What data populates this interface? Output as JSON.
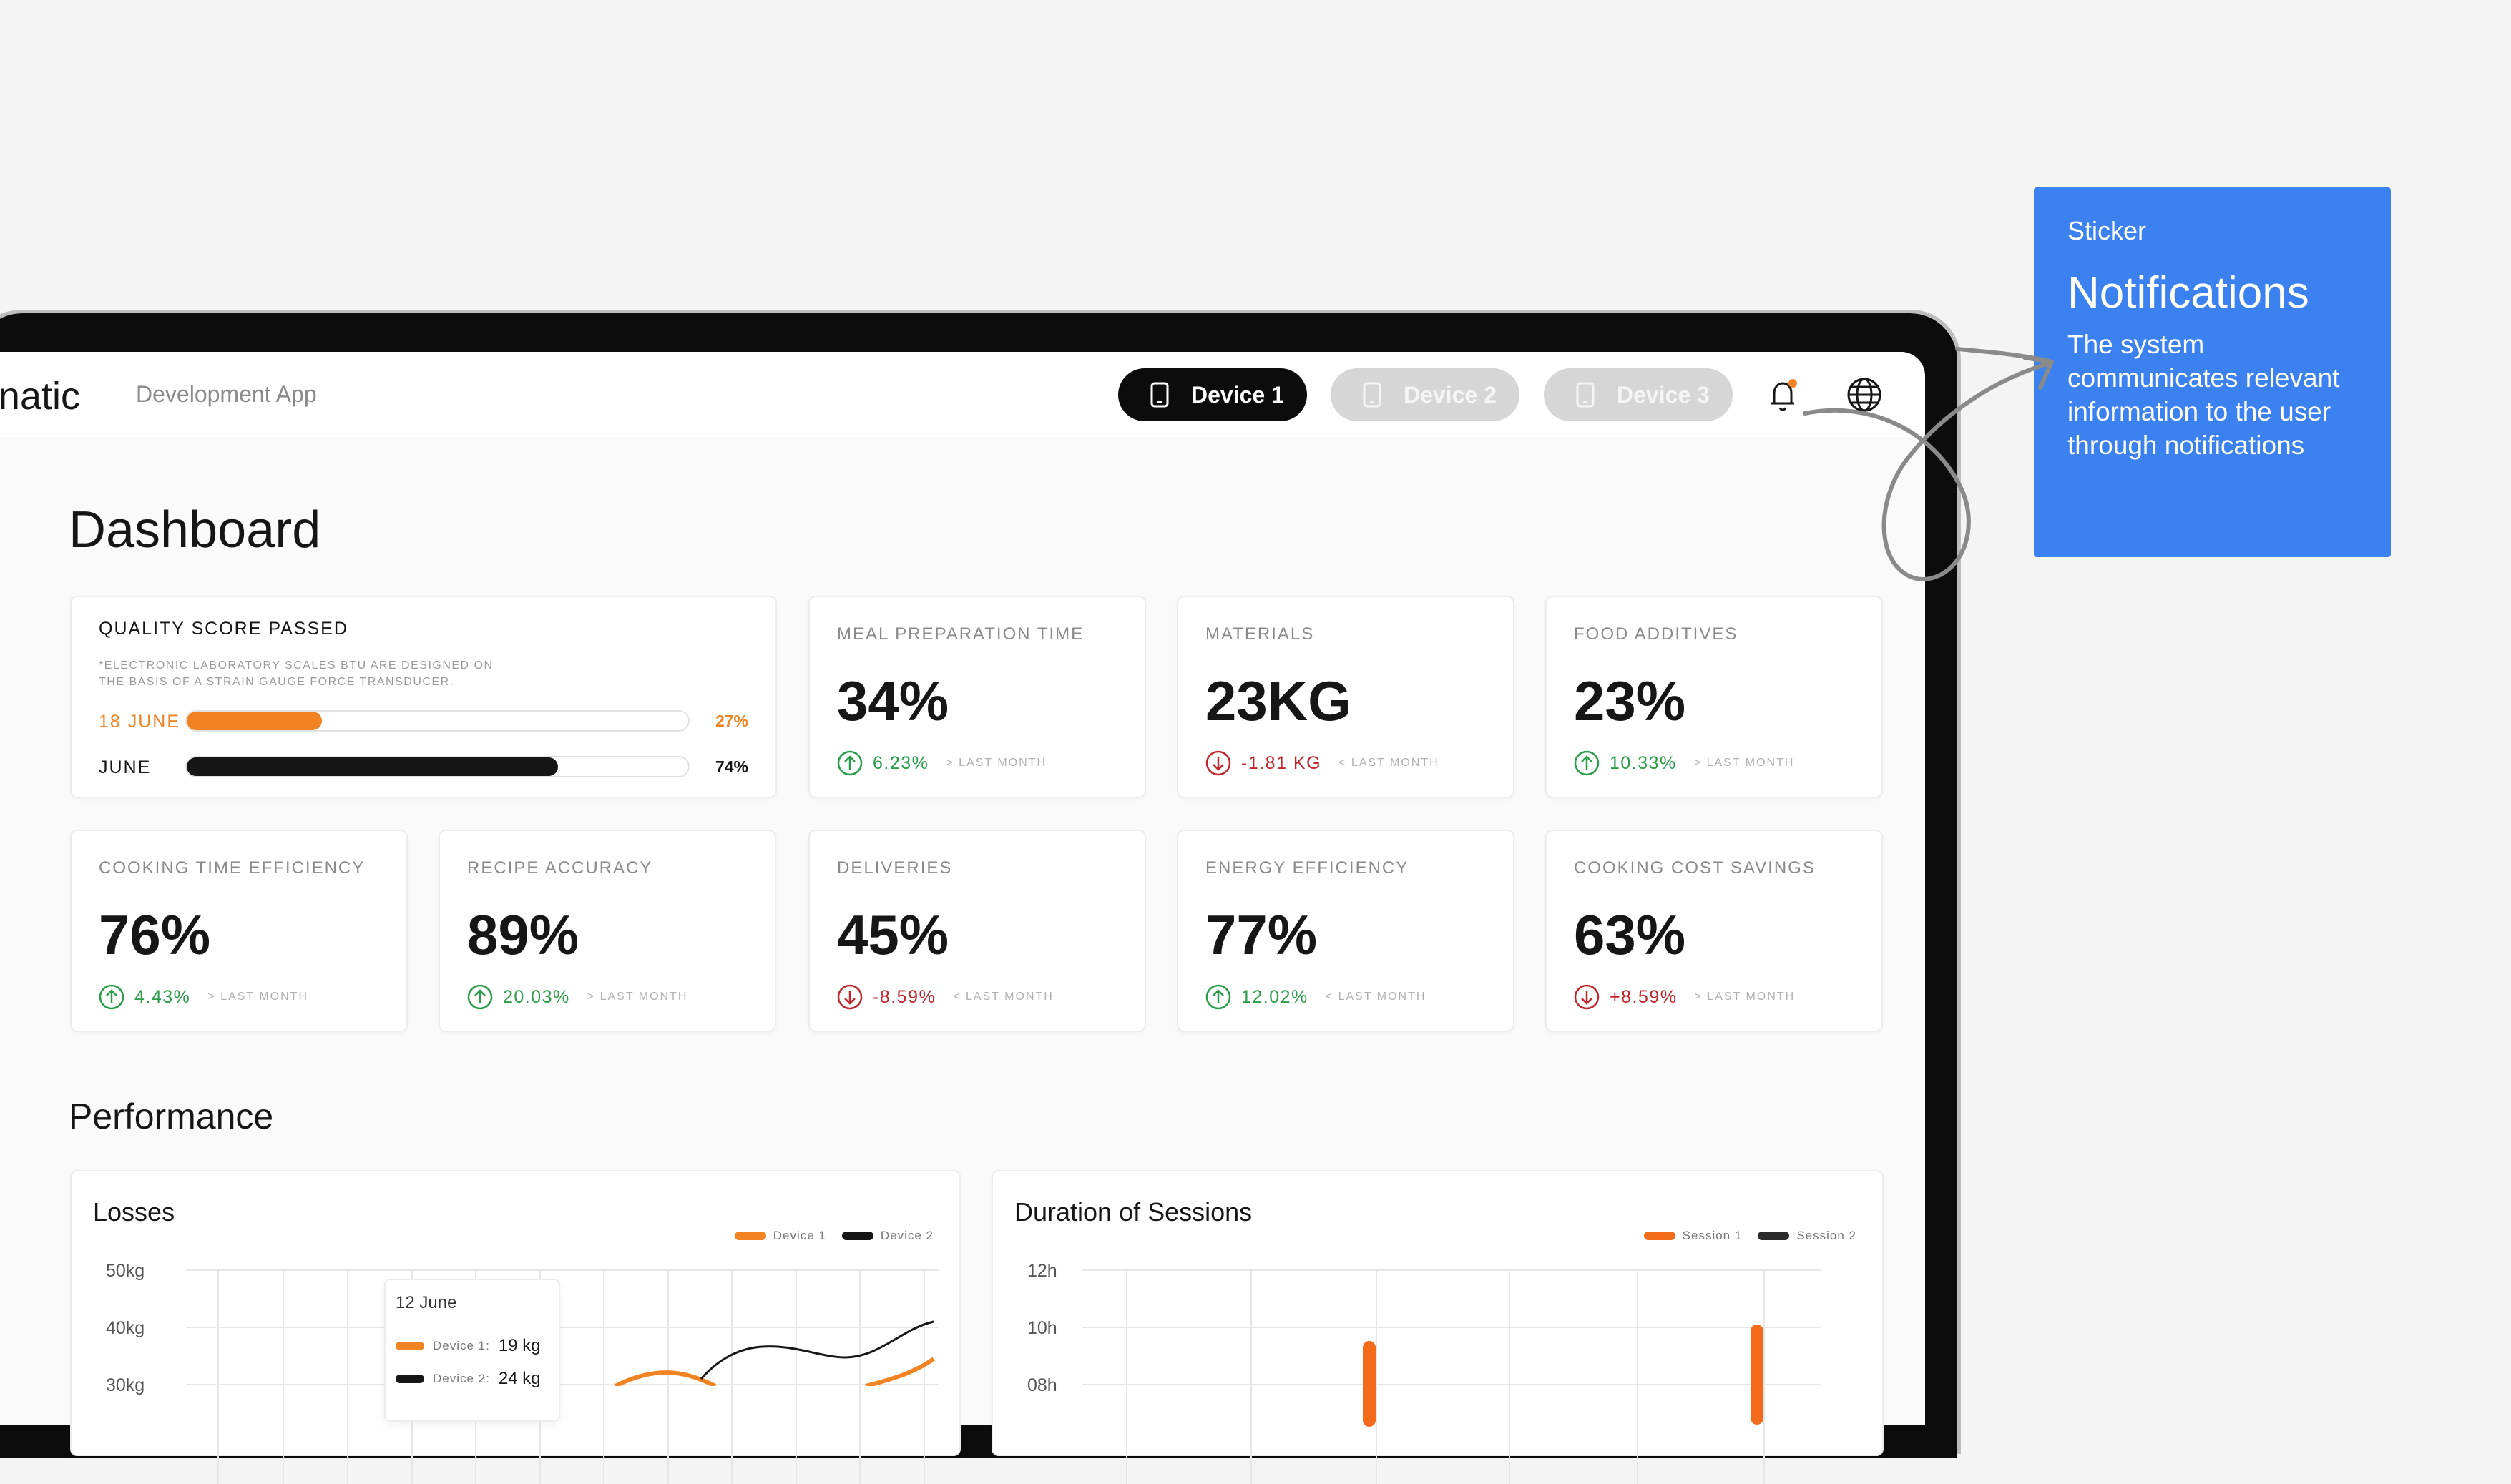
{
  "sticker": {
    "label": "Sticker",
    "title": "Notifications",
    "text": "The system communicates relevant information to the user through notifications"
  },
  "header": {
    "brand": "natic",
    "app": "Development App",
    "devices": [
      "Device 1",
      "Device 2",
      "Device 3"
    ],
    "active_device": 0
  },
  "dashboard": {
    "title": "Dashboard",
    "quality": {
      "title": "QUALITY SCORE PASSED",
      "note": "*ELECTRONIC LABORATORY SCALES BTU ARE DESIGNED ON THE BASIS OF A STRAIN GAUGE FORCE TRANSDUCER.",
      "bars": [
        {
          "label": "18 JUNE",
          "value": 27,
          "value_label": "27%",
          "color": "#f28322"
        },
        {
          "label": "JUNE",
          "value": 74,
          "value_label": "74%",
          "color": "#161616"
        }
      ]
    },
    "metrics": [
      {
        "title": "MEAL PREPARATION TIME",
        "value": "34%",
        "change": "6.23%",
        "trend": "up",
        "note": "> LAST MONTH"
      },
      {
        "title": "MATERIALS",
        "value": "23KG",
        "change": "-1.81 KG",
        "trend": "down",
        "note": "< LAST MONTH"
      },
      {
        "title": "FOOD ADDITIVES",
        "value": "23%",
        "change": "10.33%",
        "trend": "up",
        "note": "> LAST MONTH"
      },
      {
        "title": "COOKING TIME EFFICIENCY",
        "value": "76%",
        "change": "4.43%",
        "trend": "up",
        "note": "> LAST MONTH"
      },
      {
        "title": "RECIPE ACCURACY",
        "value": "89%",
        "change": "20.03%",
        "trend": "up",
        "note": "> LAST MONTH"
      },
      {
        "title": "DELIVERIES",
        "value": "45%",
        "change": "-8.59%",
        "trend": "down",
        "note": "< LAST MONTH"
      },
      {
        "title": "ENERGY EFFICIENCY",
        "value": "77%",
        "change": "12.02%",
        "trend": "up",
        "note": "< LAST MONTH"
      },
      {
        "title": "COOKING COST SAVINGS",
        "value": "63%",
        "change": "+8.59%",
        "trend": "down",
        "note": "> LAST MONTH"
      }
    ]
  },
  "performance": {
    "title": "Performance",
    "losses": {
      "title": "Losses",
      "legend": [
        {
          "name": "Device 1",
          "color": "#f28322"
        },
        {
          "name": "Device 2",
          "color": "#161616"
        }
      ],
      "yticks": [
        "50kg",
        "40kg",
        "30kg"
      ],
      "tooltip": {
        "date": "12 June",
        "rows": [
          {
            "name": "Device 1:",
            "value": "19 kg",
            "color": "#f28322"
          },
          {
            "name": "Device 2:",
            "value": "24 kg",
            "color": "#161616"
          }
        ]
      }
    },
    "sessions": {
      "title": "Duration of Sessions",
      "legend": [
        {
          "name": "Session 1",
          "color": "#f46a1b"
        },
        {
          "name": "Session 2",
          "color": "#2b2b2b"
        }
      ],
      "yticks": [
        "12h",
        "10h",
        "08h"
      ]
    }
  }
}
